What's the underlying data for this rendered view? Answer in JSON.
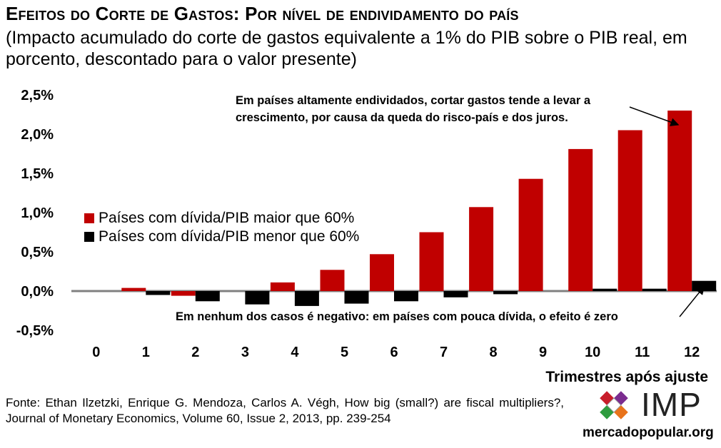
{
  "title": "Efeitos do Corte de Gastos: Por nível de endividamento do país",
  "subtitle": "(Impacto acumulado do corte de gastos equivalente a 1% do PIB sobre o PIB real, em porcento, descontado para o valor presente)",
  "source": "Fonte: Ethan Ilzetzki, Enrique G. Mendoza, Carlos A. Végh, How big (small?) are fiscal multipliers?, Journal of Monetary Economics, Volume 60, Issue 2, 2013, pp. 239-254",
  "logo": {
    "text": "IMP",
    "site": "mercadopopular.org",
    "mark": "imp-diamond-logo"
  },
  "chart_data": {
    "type": "bar",
    "title": "",
    "xlabel": "Trimestres após ajuste",
    "ylabel": "",
    "ylim": [
      -0.5,
      2.5
    ],
    "yticks": [
      -0.5,
      0.0,
      0.5,
      1.0,
      1.5,
      2.0,
      2.5
    ],
    "ytick_labels": [
      "-0,5%",
      "0,0%",
      "0,5%",
      "1,0%",
      "1,5%",
      "2,0%",
      "2,5%"
    ],
    "categories": [
      "0",
      "1",
      "2",
      "3",
      "4",
      "5",
      "6",
      "7",
      "8",
      "9",
      "10",
      "11",
      "12"
    ],
    "grid": false,
    "legend_position": "upper-left",
    "series": [
      {
        "name": "Países com dívida/PIB maior que 60%",
        "color": "#C00000",
        "values": [
          0.0,
          0.04,
          -0.06,
          0.0,
          0.11,
          0.27,
          0.47,
          0.75,
          1.07,
          1.43,
          1.81,
          2.05,
          2.3
        ]
      },
      {
        "name": "Países com dívida/PIB menor que 60%",
        "color": "#000000",
        "values": [
          0.0,
          -0.05,
          -0.13,
          -0.17,
          -0.19,
          -0.16,
          -0.13,
          -0.08,
          -0.04,
          0.0,
          0.03,
          0.03,
          0.13
        ]
      }
    ],
    "annotations": [
      {
        "id": "top",
        "text_lines": [
          "Em países altamente endividados, cortar gastos tende a levar a",
          "crescimento, por causa da queda do risco-país e dos juros."
        ],
        "target_category": 12,
        "target_series": 0
      },
      {
        "id": "bottom",
        "text_lines": [
          "Em nenhum dos casos é negativo: em países com pouca dívida, o efeito é zero"
        ],
        "target_category": 12,
        "target_series": 1
      }
    ]
  }
}
